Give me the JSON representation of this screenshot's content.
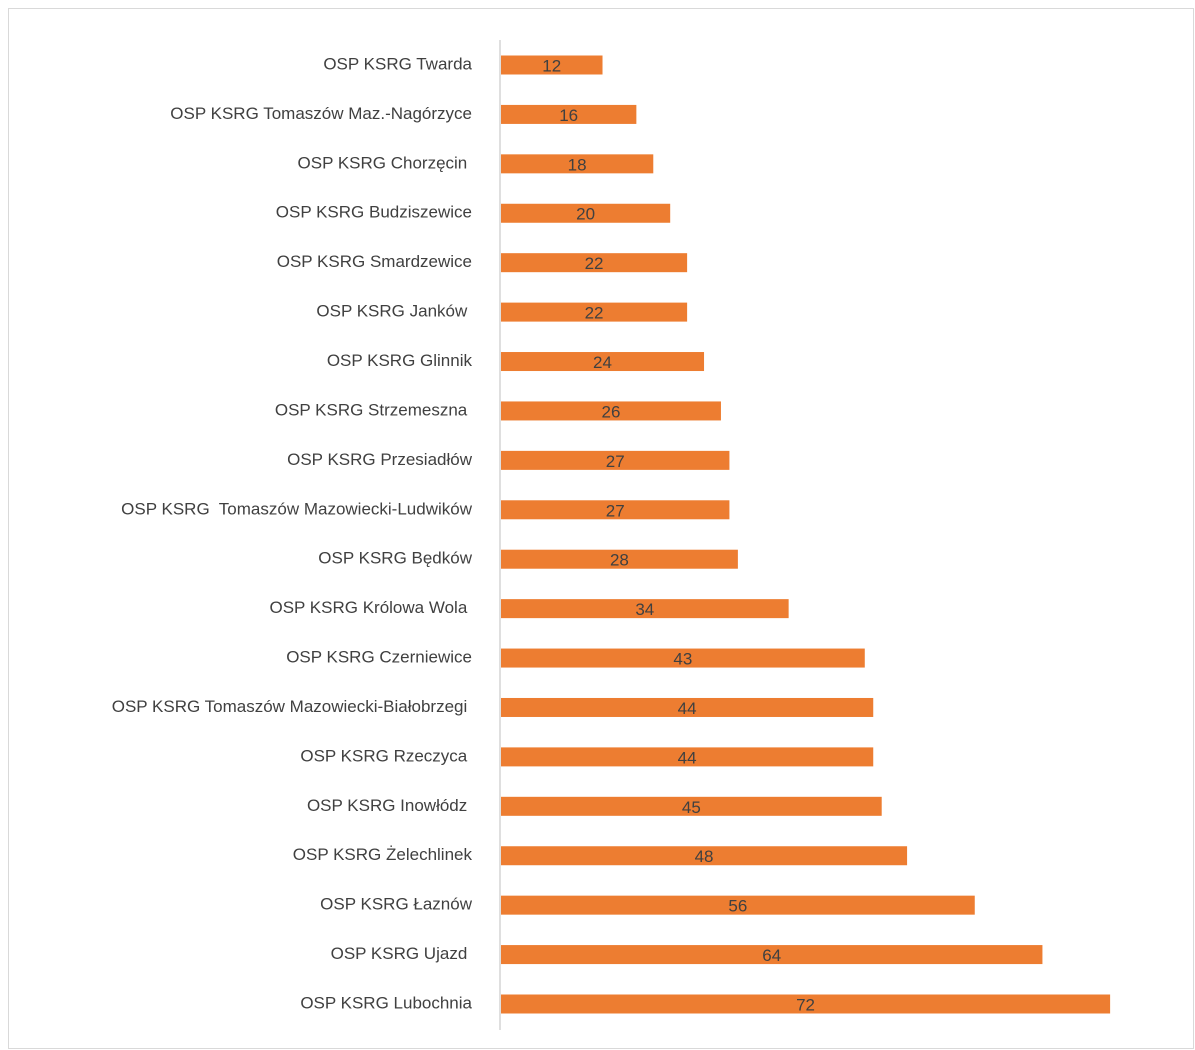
{
  "chart_data": {
    "type": "bar",
    "orientation": "horizontal",
    "color": "#ed7d31",
    "categories": [
      "OSP KSRG Twarda",
      "OSP KSRG Tomaszów Maz.-Nagórzyce",
      "OSP KSRG Chorzęcin ",
      "OSP KSRG Budziszewice",
      "OSP KSRG Smardzewice",
      "OSP KSRG Janków ",
      "OSP KSRG Glinnik",
      "OSP KSRG Strzemeszna ",
      "OSP KSRG Przesiadłów",
      "OSP KSRG  Tomaszów Mazowiecki-Ludwików",
      "OSP KSRG Będków",
      "OSP KSRG Królowa Wola ",
      "OSP KSRG Czerniewice",
      "OSP KSRG Tomaszów Mazowiecki-Białobrzegi ",
      "OSP KSRG Rzeczyca ",
      "OSP KSRG Inowłódz ",
      "OSP KSRG Żelechlinek",
      "OSP KSRG Łaznów",
      "OSP KSRG Ujazd ",
      "OSP KSRG Lubochnia"
    ],
    "values": [
      12,
      16,
      18,
      20,
      22,
      22,
      24,
      26,
      27,
      27,
      28,
      34,
      43,
      44,
      44,
      45,
      48,
      56,
      64,
      72
    ]
  }
}
